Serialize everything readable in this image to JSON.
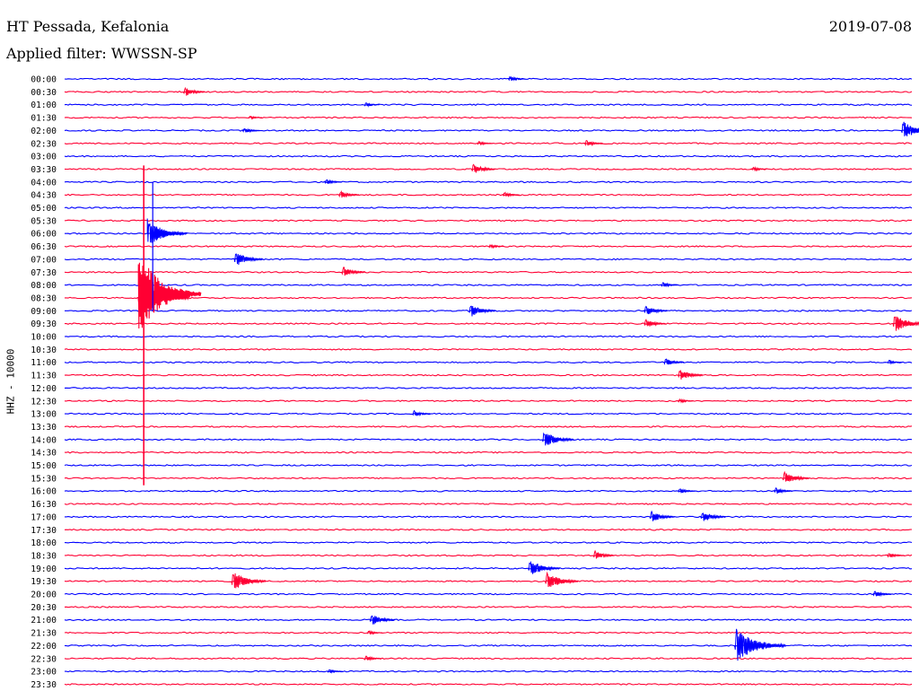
{
  "header": {
    "station": "HT Pessada, Kefalonia",
    "date": "2019-07-08",
    "filter": "Applied filter: WWSSN-SP"
  },
  "channel_label": "HHZ - 10000",
  "colors": {
    "trace_a": "#0000ff",
    "trace_b": "#ff0033",
    "background": "#ffffff",
    "text": "#000000"
  },
  "chart_data": {
    "type": "line",
    "row_labels": [
      "00:00",
      "00:30",
      "01:00",
      "01:30",
      "02:00",
      "02:30",
      "03:00",
      "03:30",
      "04:00",
      "04:30",
      "05:00",
      "05:30",
      "06:00",
      "06:30",
      "07:00",
      "07:30",
      "08:00",
      "08:30",
      "09:00",
      "09:30",
      "10:00",
      "10:30",
      "11:00",
      "11:30",
      "12:00",
      "12:30",
      "13:00",
      "13:30",
      "14:00",
      "14:30",
      "15:00",
      "15:30",
      "16:00",
      "16:30",
      "17:00",
      "17:30",
      "18:00",
      "18:30",
      "19:00",
      "19:30",
      "20:00",
      "20:30",
      "21:00",
      "21:30",
      "22:00",
      "22:30",
      "23:00",
      "23:30"
    ],
    "row_duration_minutes": 30,
    "color_cycle": [
      "trace_a",
      "trace_b"
    ],
    "events": [
      {
        "row": 0,
        "minute": 15.7,
        "amp": 0.5
      },
      {
        "row": 1,
        "minute": 4.2,
        "amp": 0.8
      },
      {
        "row": 2,
        "minute": 10.6,
        "amp": 0.4
      },
      {
        "row": 3,
        "minute": 6.5,
        "amp": 0.3
      },
      {
        "row": 4,
        "minute": 6.3,
        "amp": 0.5
      },
      {
        "row": 4,
        "minute": 29.6,
        "amp": 1.5
      },
      {
        "row": 5,
        "minute": 14.6,
        "amp": 0.4
      },
      {
        "row": 5,
        "minute": 18.4,
        "amp": 0.6
      },
      {
        "row": 7,
        "minute": 14.4,
        "amp": 0.9
      },
      {
        "row": 7,
        "minute": 24.3,
        "amp": 0.4
      },
      {
        "row": 8,
        "minute": 9.2,
        "amp": 0.5
      },
      {
        "row": 9,
        "minute": 9.7,
        "amp": 0.7
      },
      {
        "row": 9,
        "minute": 15.5,
        "amp": 0.5
      },
      {
        "row": 12,
        "minute": 3.1,
        "amp": 1.6
      },
      {
        "row": 13,
        "minute": 15.0,
        "amp": 0.4
      },
      {
        "row": 14,
        "minute": 6.0,
        "amp": 1.2
      },
      {
        "row": 15,
        "minute": 9.8,
        "amp": 0.9
      },
      {
        "row": 16,
        "minute": 21.1,
        "amp": 0.5
      },
      {
        "row": 17,
        "minute": 2.6,
        "amp": 2.6
      },
      {
        "row": 18,
        "minute": 14.3,
        "amp": 1.1
      },
      {
        "row": 18,
        "minute": 20.5,
        "amp": 0.9
      },
      {
        "row": 19,
        "minute": 20.5,
        "amp": 0.8
      },
      {
        "row": 19,
        "minute": 29.3,
        "amp": 1.5
      },
      {
        "row": 22,
        "minute": 21.2,
        "amp": 0.7
      },
      {
        "row": 22,
        "minute": 29.1,
        "amp": 0.4
      },
      {
        "row": 23,
        "minute": 21.7,
        "amp": 1.0
      },
      {
        "row": 25,
        "minute": 21.7,
        "amp": 0.4
      },
      {
        "row": 26,
        "minute": 12.3,
        "amp": 0.6
      },
      {
        "row": 28,
        "minute": 16.9,
        "amp": 1.4
      },
      {
        "row": 31,
        "minute": 25.4,
        "amp": 1.1
      },
      {
        "row": 32,
        "minute": 21.7,
        "amp": 0.5
      },
      {
        "row": 32,
        "minute": 25.1,
        "amp": 0.6
      },
      {
        "row": 34,
        "minute": 20.7,
        "amp": 1.0
      },
      {
        "row": 34,
        "minute": 22.5,
        "amp": 1.0
      },
      {
        "row": 37,
        "minute": 18.7,
        "amp": 0.8
      },
      {
        "row": 37,
        "minute": 29.1,
        "amp": 0.5
      },
      {
        "row": 38,
        "minute": 16.4,
        "amp": 1.4
      },
      {
        "row": 39,
        "minute": 5.9,
        "amp": 1.6
      },
      {
        "row": 39,
        "minute": 17.0,
        "amp": 1.5
      },
      {
        "row": 40,
        "minute": 28.6,
        "amp": 0.6
      },
      {
        "row": 42,
        "minute": 10.8,
        "amp": 1.0
      },
      {
        "row": 43,
        "minute": 10.7,
        "amp": 0.4
      },
      {
        "row": 44,
        "minute": 23.7,
        "amp": 2.6
      },
      {
        "row": 45,
        "minute": 10.6,
        "amp": 0.5
      },
      {
        "row": 46,
        "minute": 9.3,
        "amp": 0.4
      }
    ],
    "large_event": {
      "row": 16,
      "minute": 2.8,
      "amp": 5.5,
      "span_rows": [
        7,
        31
      ]
    }
  }
}
